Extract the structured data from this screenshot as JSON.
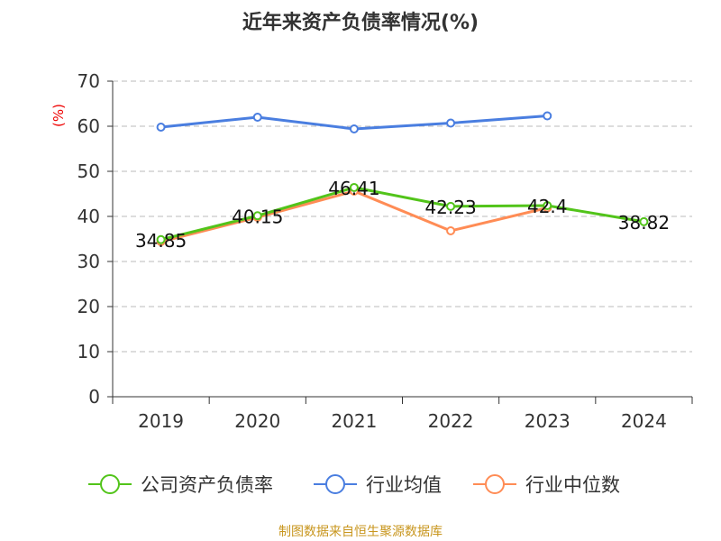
{
  "chart_data": {
    "type": "line",
    "title": "近年来资产负债率情况(%)",
    "ylabel": "(%)",
    "xlabel": "",
    "categories": [
      "2019",
      "2020",
      "2021",
      "2022",
      "2023",
      "2024"
    ],
    "ylim": [
      0,
      70
    ],
    "yticks": [
      0,
      10,
      20,
      30,
      40,
      50,
      60,
      70
    ],
    "grid": true,
    "legend_position": "bottom",
    "series": [
      {
        "name": "公司资产负债率",
        "color": "#52c41a",
        "values": [
          34.85,
          40.15,
          46.41,
          42.23,
          42.4,
          38.82
        ],
        "labels": [
          "34.85",
          "40.15",
          "46.41",
          "42.23",
          "42.4",
          "38.82"
        ]
      },
      {
        "name": "行业均值",
        "color": "#4a7ee0",
        "values": [
          59.8,
          62.0,
          59.4,
          60.7,
          62.3,
          null
        ]
      },
      {
        "name": "行业中位数",
        "color": "#ff8c55",
        "values": [
          34.4,
          39.8,
          45.6,
          36.8,
          41.9,
          null
        ]
      }
    ],
    "source": "制图数据来自恒生聚源数据库"
  }
}
